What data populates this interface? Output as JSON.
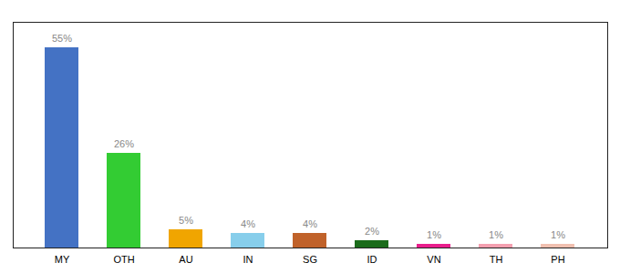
{
  "chart_data": {
    "type": "bar",
    "categories": [
      "MY",
      "OTH",
      "AU",
      "IN",
      "SG",
      "ID",
      "VN",
      "TH",
      "PH"
    ],
    "values": [
      55,
      26,
      5,
      4,
      4,
      2,
      1,
      1,
      1
    ],
    "value_labels": [
      "55%",
      "26%",
      "5%",
      "4%",
      "4%",
      "2%",
      "1%",
      "1%",
      "1%"
    ],
    "colors": [
      "#4472c4",
      "#33cc33",
      "#f0a500",
      "#87ceeb",
      "#c0622a",
      "#1a6b1a",
      "#e91e8c",
      "#f4a0b0",
      "#f0c0b0"
    ],
    "ylim": [
      0,
      62
    ],
    "data_labels": true,
    "tick_labels": "x",
    "grid": false
  }
}
